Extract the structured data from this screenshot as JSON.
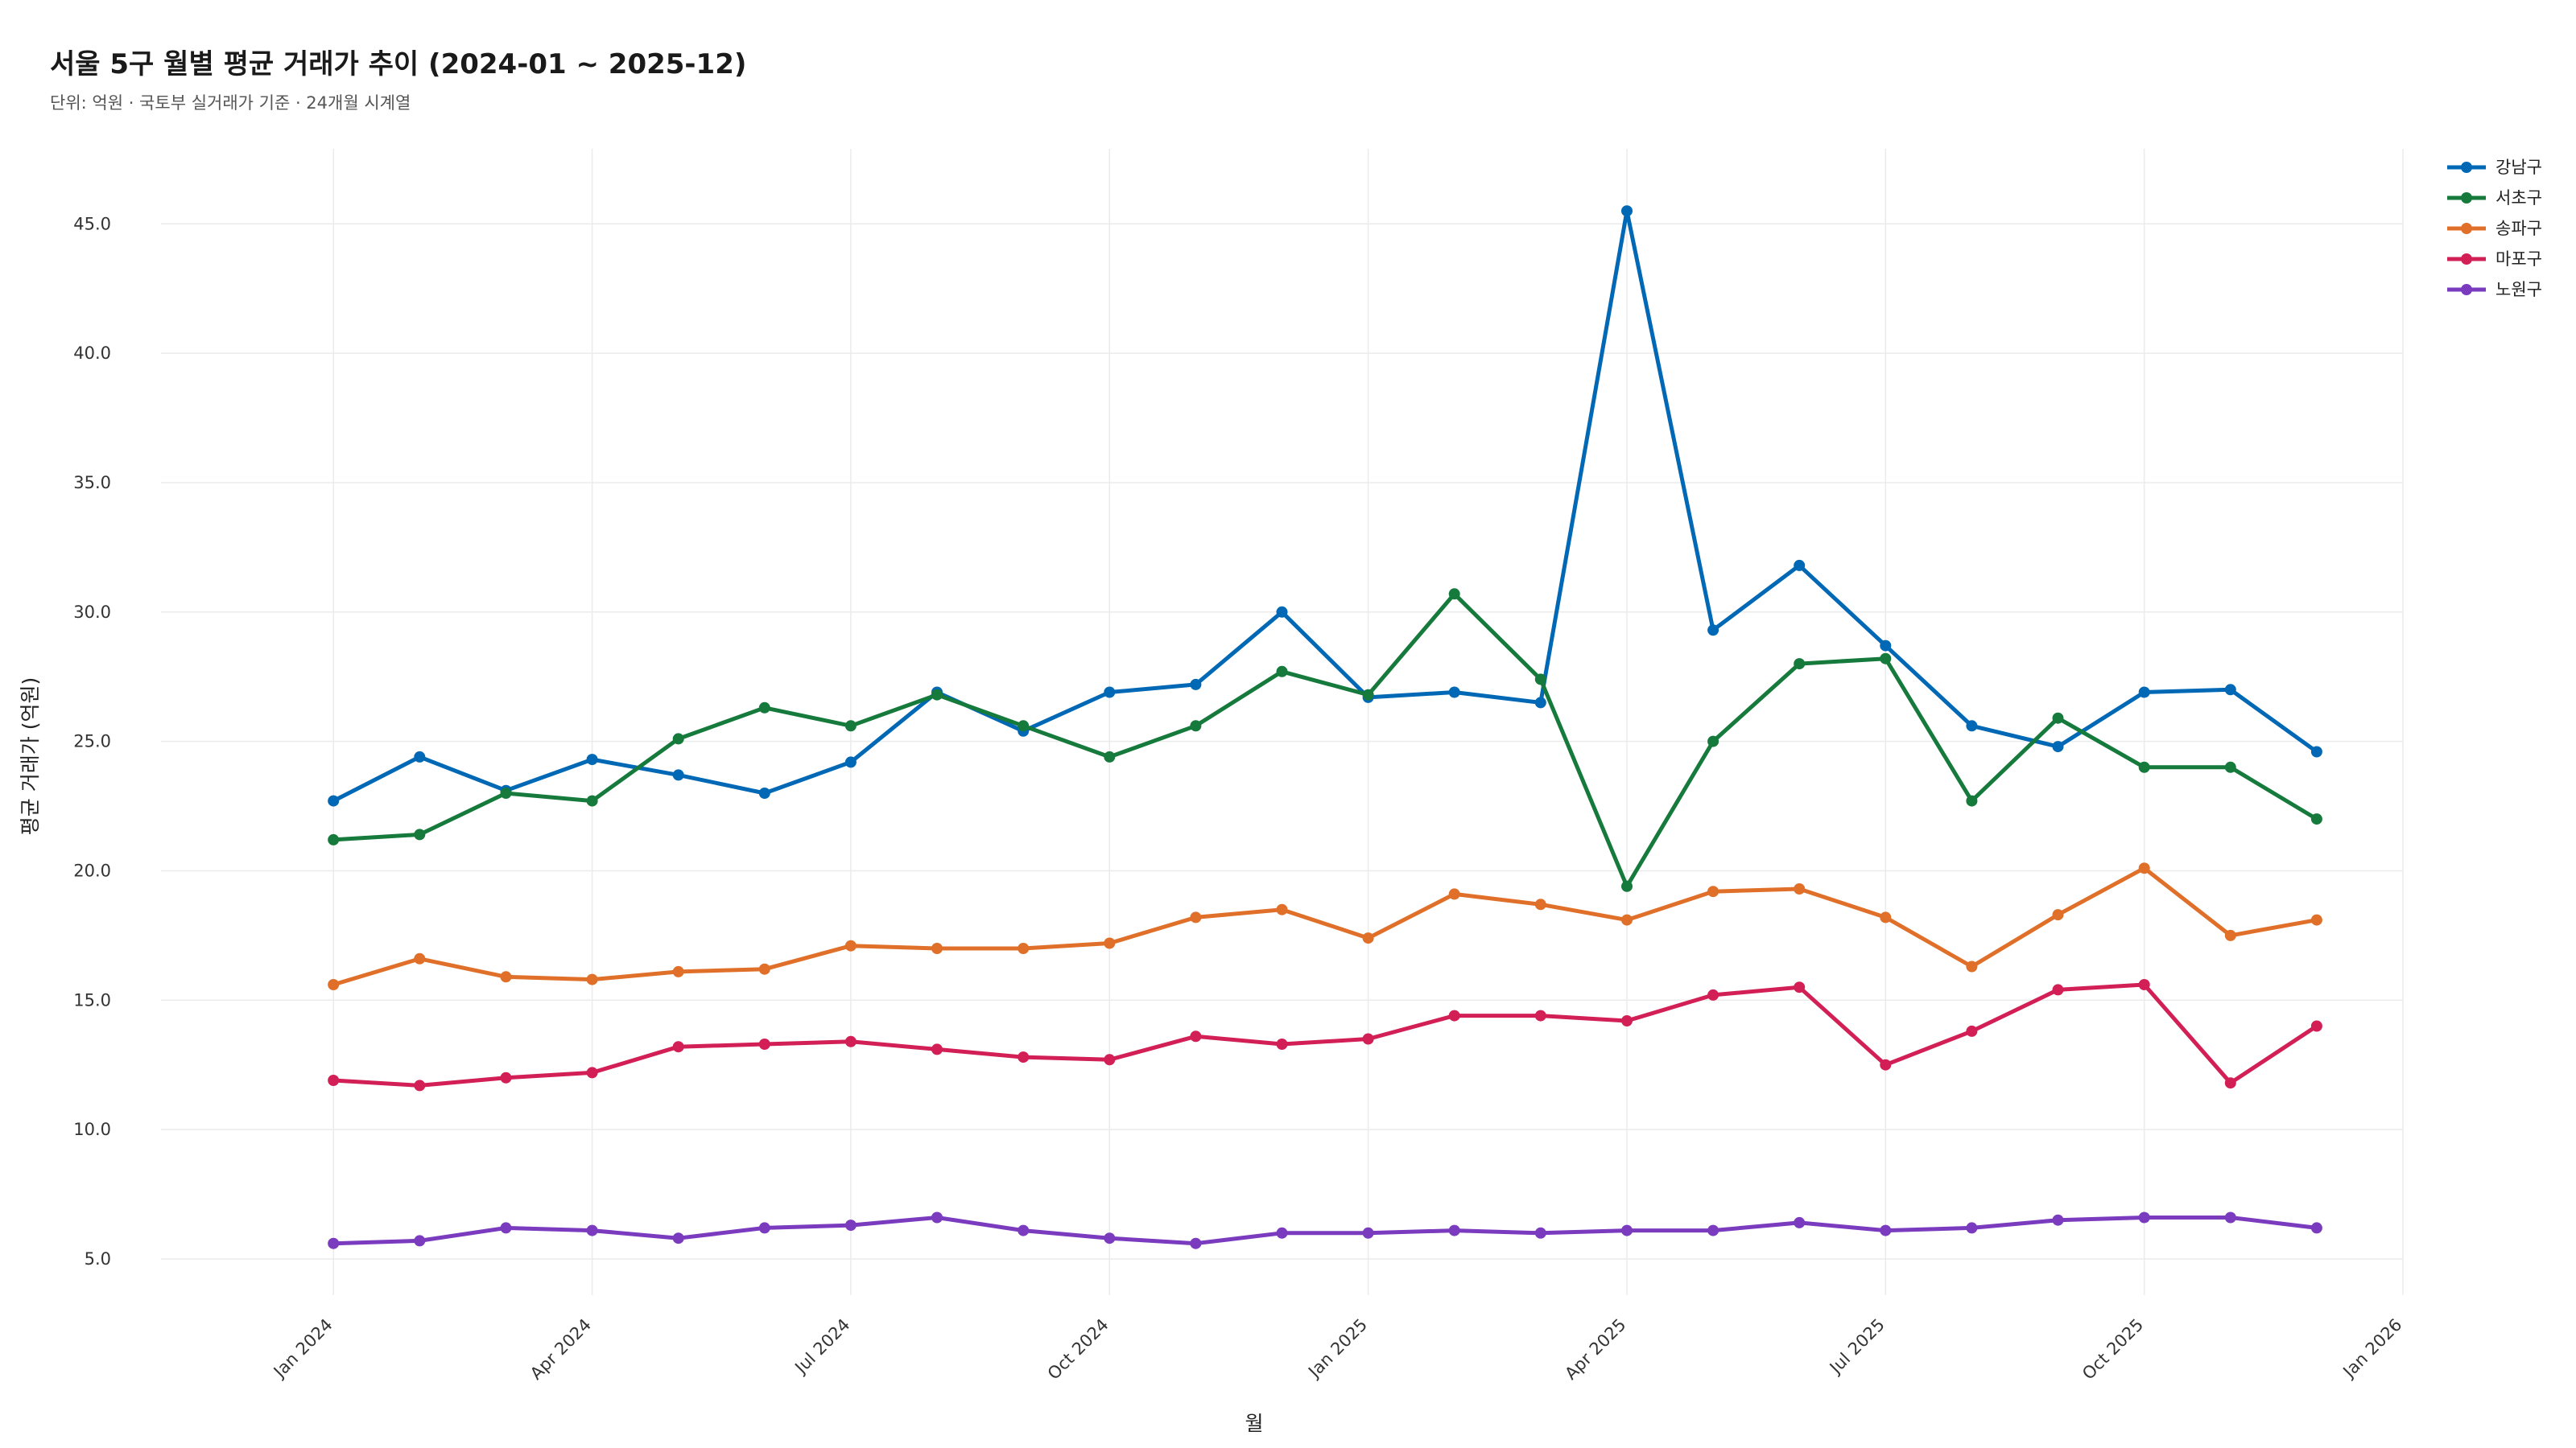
{
  "chart_data": {
    "type": "line",
    "title": "서울 5구 월별 평균 거래가 추이 (2024-01 ~ 2025-12)",
    "subtitle": "단위: 억원 · 국토부 실거래가 기준 · 24개월 시계열",
    "xlabel": "월",
    "ylabel": "평균 거래가 (억원)",
    "x": [
      "2024-01",
      "2024-02",
      "2024-03",
      "2024-04",
      "2024-05",
      "2024-06",
      "2024-07",
      "2024-08",
      "2024-09",
      "2024-10",
      "2024-11",
      "2024-12",
      "2025-01",
      "2025-02",
      "2025-03",
      "2025-04",
      "2025-05",
      "2025-06",
      "2025-07",
      "2025-08",
      "2025-09",
      "2025-10",
      "2025-11",
      "2025-12"
    ],
    "x_ticks": [
      {
        "date": "2024-01",
        "label": "Jan 2024"
      },
      {
        "date": "2024-04",
        "label": "Apr 2024"
      },
      {
        "date": "2024-07",
        "label": "Jul 2024"
      },
      {
        "date": "2024-10",
        "label": "Oct 2024"
      },
      {
        "date": "2025-01",
        "label": "Jan 2025"
      },
      {
        "date": "2025-04",
        "label": "Apr 2025"
      },
      {
        "date": "2025-07",
        "label": "Jul 2025"
      },
      {
        "date": "2025-10",
        "label": "Oct 2025"
      },
      {
        "date": "2026-01",
        "label": "Jan 2026"
      }
    ],
    "xlim": [
      "2023-11",
      "2026-01"
    ],
    "ylim": [
      3.6,
      47.9
    ],
    "y_ticks": [
      "5.0",
      "10.0",
      "15.0",
      "20.0",
      "25.0",
      "30.0",
      "35.0",
      "40.0",
      "45.0"
    ],
    "grid": true,
    "legend_position": "top-right",
    "series": [
      {
        "name": "강남구",
        "color": "#0068b4",
        "values": [
          22.7,
          24.4,
          23.1,
          24.3,
          23.7,
          23.0,
          24.2,
          26.9,
          25.4,
          26.9,
          27.2,
          30.0,
          26.7,
          26.9,
          26.5,
          45.5,
          29.3,
          31.8,
          28.7,
          25.6,
          24.8,
          26.9,
          27.0,
          24.6
        ]
      },
      {
        "name": "서초구",
        "color": "#157a3b",
        "values": [
          21.2,
          21.4,
          23.0,
          22.7,
          25.1,
          26.3,
          25.6,
          26.8,
          25.6,
          24.4,
          25.6,
          27.7,
          26.8,
          30.7,
          27.4,
          19.4,
          25.0,
          28.0,
          28.2,
          22.7,
          25.9,
          24.0,
          24.0,
          22.0
        ]
      },
      {
        "name": "송파구",
        "color": "#e07029",
        "values": [
          15.6,
          16.6,
          15.9,
          15.8,
          16.1,
          16.2,
          17.1,
          17.0,
          17.0,
          17.2,
          18.2,
          18.5,
          17.4,
          19.1,
          18.7,
          18.1,
          19.2,
          19.3,
          18.2,
          16.3,
          18.3,
          20.1,
          17.5,
          18.1
        ]
      },
      {
        "name": "마포구",
        "color": "#d21f56",
        "values": [
          11.9,
          11.7,
          12.0,
          12.2,
          13.2,
          13.3,
          13.4,
          13.1,
          12.8,
          12.7,
          13.6,
          13.3,
          13.5,
          14.4,
          14.4,
          14.2,
          15.2,
          15.5,
          12.5,
          13.8,
          15.4,
          15.6,
          11.8,
          14.0
        ]
      },
      {
        "name": "노원구",
        "color": "#7a3bbf",
        "values": [
          5.6,
          5.7,
          6.2,
          6.1,
          5.8,
          6.2,
          6.3,
          6.6,
          6.1,
          5.8,
          5.6,
          6.0,
          6.0,
          6.1,
          6.0,
          6.1,
          6.1,
          6.4,
          6.1,
          6.2,
          6.5,
          6.6,
          6.6,
          6.2
        ]
      }
    ]
  }
}
